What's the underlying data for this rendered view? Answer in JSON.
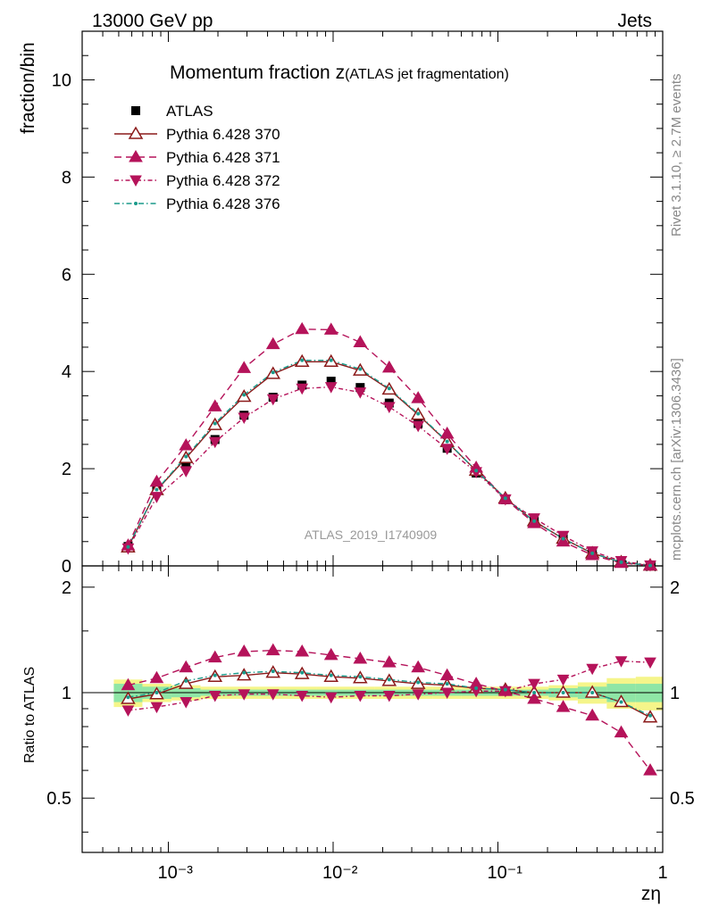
{
  "header": {
    "left": "13000 GeV pp",
    "right": "Jets"
  },
  "side_labels": {
    "top": "Rivet 3.1.10, ≥ 2.7M events",
    "bottom": "mcplots.cern.ch [arXiv:1306.3436]"
  },
  "watermark": "ATLAS_2019_I1740909",
  "chart_data": {
    "type": "scatter",
    "title": "Momentum fraction z",
    "title_suffix": "(ATLAS jet fragmentation)",
    "xlabel": "zη",
    "ylabel": "fraction/bin",
    "ratio_ylabel": "Ratio to ATLAS",
    "log_x": true,
    "xlim": [
      0.0003,
      1
    ],
    "ylim": [
      0,
      11
    ],
    "ratio_ylim": [
      0.35,
      2.3
    ],
    "x_tick_labels": [
      "10⁻³",
      "10⁻²",
      "10⁻¹",
      "1"
    ],
    "y_tick_labels": [
      "0",
      "2",
      "4",
      "6",
      "8",
      "10"
    ],
    "ratio_tick_labels": [
      "0.5",
      "1",
      "2"
    ],
    "x": [
      0.00057,
      0.00085,
      0.00128,
      0.00192,
      0.00288,
      0.00432,
      0.00648,
      0.00972,
      0.0146,
      0.0219,
      0.0328,
      0.0492,
      0.0738,
      0.111,
      0.166,
      0.249,
      0.374,
      0.56,
      0.84
    ],
    "data": {
      "name": "ATLAS",
      "color": "#000000",
      "values": [
        0.4,
        1.58,
        2.1,
        2.6,
        3.1,
        3.47,
        3.72,
        3.8,
        3.67,
        3.35,
        2.93,
        2.42,
        1.91,
        1.36,
        0.92,
        0.56,
        0.26,
        0.08,
        0.01
      ],
      "band_inner": [
        0.06,
        0.04,
        0.03,
        0.02,
        0.02,
        0.02,
        0.02,
        0.02,
        0.02,
        0.02,
        0.02,
        0.02,
        0.02,
        0.02,
        0.02,
        0.03,
        0.04,
        0.06,
        0.06
      ],
      "band_outer": [
        0.09,
        0.06,
        0.05,
        0.04,
        0.04,
        0.04,
        0.04,
        0.04,
        0.04,
        0.04,
        0.04,
        0.04,
        0.04,
        0.04,
        0.04,
        0.05,
        0.07,
        0.1,
        0.11
      ]
    },
    "series": [
      {
        "name": "Pythia 6.428 370",
        "color": "#8b1a1a",
        "marker": "triangle-up-open",
        "dash": "solid",
        "values": [
          0.38,
          1.56,
          2.22,
          2.9,
          3.48,
          3.95,
          4.2,
          4.2,
          4.02,
          3.63,
          3.11,
          2.55,
          1.96,
          1.39,
          0.92,
          0.56,
          0.26,
          0.075,
          0.008
        ],
        "ratio": [
          0.96,
          0.99,
          1.06,
          1.11,
          1.12,
          1.14,
          1.13,
          1.11,
          1.1,
          1.08,
          1.06,
          1.05,
          1.03,
          1.02,
          1.0,
          1.0,
          1.0,
          0.94,
          0.85
        ]
      },
      {
        "name": "Pythia 6.428 371",
        "color": "#b5135a",
        "marker": "triangle-up",
        "dash": "8,5",
        "values": [
          0.42,
          1.73,
          2.48,
          3.28,
          4.07,
          4.56,
          4.87,
          4.86,
          4.6,
          4.08,
          3.45,
          2.72,
          2.02,
          1.37,
          0.88,
          0.5,
          0.22,
          0.06,
          0.006
        ],
        "ratio": [
          1.05,
          1.1,
          1.18,
          1.26,
          1.31,
          1.32,
          1.31,
          1.28,
          1.25,
          1.22,
          1.18,
          1.12,
          1.06,
          1.01,
          0.96,
          0.91,
          0.86,
          0.77,
          0.6
        ]
      },
      {
        "name": "Pythia 6.428 372",
        "color": "#b5135a",
        "marker": "triangle-down",
        "dash": "5,3,1.5,3",
        "values": [
          0.36,
          1.42,
          1.95,
          2.55,
          3.05,
          3.43,
          3.65,
          3.68,
          3.57,
          3.27,
          2.88,
          2.41,
          1.93,
          1.37,
          0.98,
          0.62,
          0.3,
          0.1,
          0.012
        ],
        "ratio": [
          0.89,
          0.91,
          0.94,
          0.98,
          0.99,
          0.99,
          0.98,
          0.97,
          0.98,
          0.98,
          0.99,
          1.0,
          1.01,
          1.01,
          1.06,
          1.09,
          1.17,
          1.23,
          1.22
        ]
      },
      {
        "name": "Pythia 6.428 376",
        "color": "#1a9a8a",
        "marker": "dot",
        "dash": "6,3,1.5,3",
        "values": [
          0.39,
          1.57,
          2.25,
          2.93,
          3.52,
          3.98,
          4.23,
          4.23,
          4.05,
          3.65,
          3.13,
          2.56,
          1.96,
          1.39,
          0.92,
          0.56,
          0.26,
          0.076,
          0.008
        ],
        "ratio": [
          0.97,
          1.0,
          1.08,
          1.12,
          1.14,
          1.15,
          1.14,
          1.12,
          1.11,
          1.09,
          1.07,
          1.06,
          1.03,
          1.02,
          1.0,
          1.0,
          1.0,
          0.94,
          0.86
        ]
      }
    ]
  }
}
